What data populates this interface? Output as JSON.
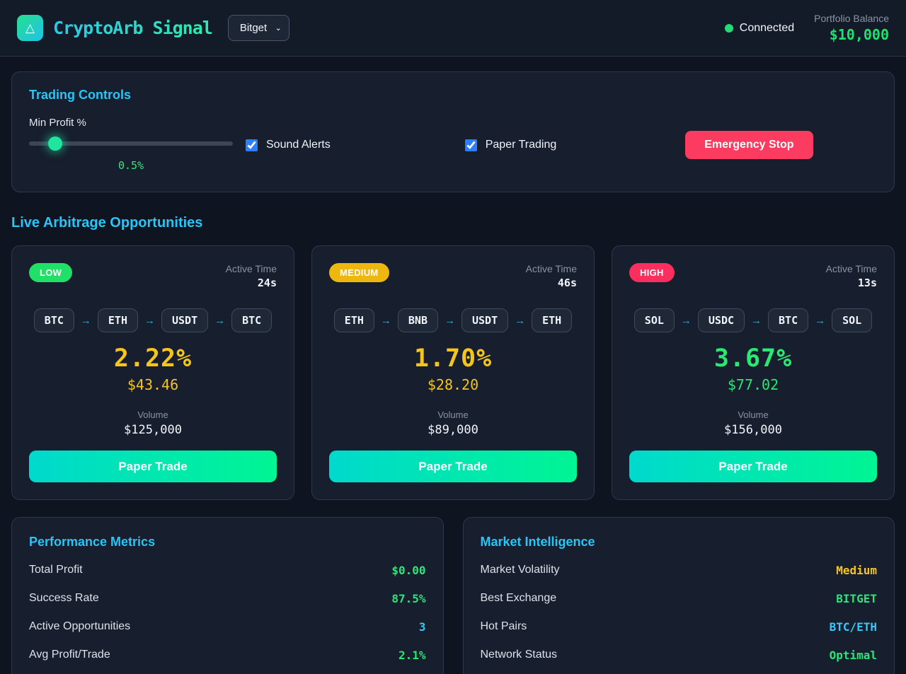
{
  "header": {
    "app_title": "CryptoArb Signal",
    "logo_glyph": "△",
    "exchange_select": {
      "selected": "Bitget",
      "chevron_glyph": "⌄"
    },
    "connection": {
      "status": "Connected",
      "dot_color": "#22dd77"
    },
    "portfolio": {
      "label": "Portfolio Balance",
      "value": "$10,000",
      "value_color": "#1fe26e"
    }
  },
  "trading_controls": {
    "title": "Trading Controls",
    "min_profit_label": "Min Profit %",
    "min_profit_value": "0.5%",
    "min_profit_slider": "0.5",
    "min_profit_value_color": "#3ee37f",
    "sound_alerts_label": "Sound Alerts",
    "paper_trading_label": "Paper Trading",
    "emergency_stop_label": "Emergency Stop",
    "emergency_stop_color": "#fb3b5f"
  },
  "opportunities": {
    "title": "Live Arbitrage Opportunities",
    "active_time_label": "Active Time",
    "volume_label": "Volume",
    "paper_trade_label": "Paper Trade",
    "arrow_glyph": "→",
    "cards": [
      {
        "risk": "LOW",
        "risk_bg": "#21e067",
        "active_time": "24s",
        "coins": [
          "BTC",
          "ETH",
          "USDT",
          "BTC"
        ],
        "profit_pct": "2.22%",
        "profit_usd": "$43.46",
        "profit_color": "#f5c51e",
        "volume": "$125,000"
      },
      {
        "risk": "MEDIUM",
        "risk_bg": "#eeb70f",
        "active_time": "46s",
        "coins": [
          "ETH",
          "BNB",
          "USDT",
          "ETH"
        ],
        "profit_pct": "1.70%",
        "profit_usd": "$28.20",
        "profit_color": "#f5c51e",
        "volume": "$89,000"
      },
      {
        "risk": "HIGH",
        "risk_bg": "#fb2f5e",
        "active_time": "13s",
        "coins": [
          "SOL",
          "USDC",
          "BTC",
          "SOL"
        ],
        "profit_pct": "3.67%",
        "profit_usd": "$77.02",
        "profit_color": "#2ae872",
        "volume": "$156,000"
      }
    ]
  },
  "performance": {
    "title": "Performance Metrics",
    "rows": [
      {
        "label": "Total Profit",
        "value": "$0.00",
        "color": "#2ee37a"
      },
      {
        "label": "Success Rate",
        "value": "87.5%",
        "color": "#2ee37a"
      },
      {
        "label": "Active Opportunities",
        "value": "3",
        "color": "#38c8f8"
      },
      {
        "label": "Avg Profit/Trade",
        "value": "2.1%",
        "color": "#2ee37a"
      }
    ]
  },
  "market": {
    "title": "Market Intelligence",
    "rows": [
      {
        "label": "Market Volatility",
        "value": "Medium",
        "color": "#f5c51e"
      },
      {
        "label": "Best Exchange",
        "value": "BITGET",
        "color": "#2ee37a"
      },
      {
        "label": "Hot Pairs",
        "value": "BTC/ETH",
        "color": "#38c8f8"
      },
      {
        "label": "Network Status",
        "value": "Optimal",
        "color": "#2ee37a"
      }
    ]
  }
}
